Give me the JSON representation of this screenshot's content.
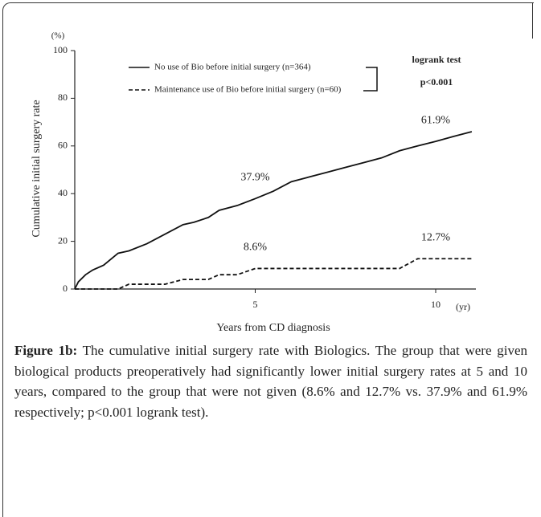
{
  "chart_data": {
    "type": "line",
    "y_unit": "(%)",
    "x_unit": "(yr)",
    "ylabel": "Cumulative initial surgery rate",
    "xlabel": "Years from CD diagnosis",
    "x": [
      0,
      0.1,
      0.3,
      0.5,
      0.8,
      1.2,
      1.5,
      2.0,
      2.5,
      3.0,
      3.3,
      3.7,
      4.0,
      4.5,
      5.0,
      5.5,
      6.0,
      6.5,
      7.0,
      7.5,
      8.0,
      8.5,
      9.0,
      9.5,
      10.0,
      10.5,
      11.0
    ],
    "series": [
      {
        "name": "No use of Bio before initial surgery (n=364)",
        "color": "#111111",
        "dash": false,
        "values": [
          0,
          3,
          6,
          8,
          10,
          15,
          16,
          19,
          23,
          27,
          28,
          30,
          33,
          35,
          37.9,
          41,
          45,
          47,
          49,
          51,
          53,
          55,
          58,
          60,
          61.9,
          64,
          66
        ],
        "value_labels": [
          null,
          null,
          null,
          null,
          null,
          null,
          null,
          null,
          null,
          null,
          null,
          null,
          null,
          null,
          "37.9%",
          null,
          null,
          null,
          null,
          null,
          null,
          null,
          null,
          null,
          "61.9%",
          null,
          null
        ]
      },
      {
        "name": "Maintenance use of Bio before initial surgery (n=60)",
        "color": "#111111",
        "dash": true,
        "values": [
          0,
          0,
          0,
          0,
          0,
          0,
          2,
          2,
          2,
          4,
          4,
          4,
          6,
          6,
          8.6,
          8.6,
          8.6,
          8.6,
          8.6,
          8.6,
          8.6,
          8.6,
          8.6,
          12.7,
          12.7,
          12.7,
          12.7
        ],
        "value_labels": [
          null,
          null,
          null,
          null,
          null,
          null,
          null,
          null,
          null,
          null,
          null,
          null,
          null,
          null,
          "8.6%",
          null,
          null,
          null,
          null,
          null,
          null,
          null,
          null,
          null,
          "12.7%",
          null,
          null
        ]
      }
    ],
    "annotations": [
      "logrank test",
      "p<0.001"
    ],
    "xlim": [
      0,
      11.1
    ],
    "xticks": [
      5,
      10
    ],
    "ylim": [
      0,
      100
    ],
    "yticks": [
      0,
      20,
      40,
      60,
      80,
      100
    ]
  },
  "caption": {
    "label": "Figure 1b:",
    "text": " The cumulative initial surgery rate with Biologics. The group that were given biological products preoperatively had significantly lower initial surgery rates at 5 and 10 years, compared to the group that were not given (8.6% and 12.7% vs. 37.9% and 61.9% respectively; p<0.001 logrank test)."
  }
}
